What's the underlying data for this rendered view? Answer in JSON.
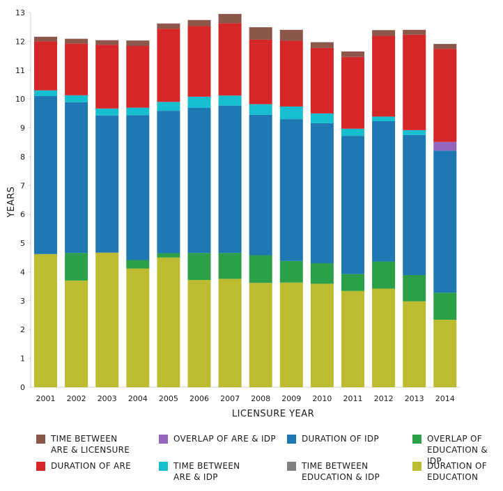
{
  "chart_data": {
    "type": "bar",
    "stacked": true,
    "xlabel": "LICENSURE YEAR",
    "ylabel": "YEARS",
    "ylim": [
      0,
      13
    ],
    "yticks": [
      "0",
      "1",
      "2",
      "3",
      "4",
      "5",
      "6",
      "7",
      "8",
      "9",
      "10",
      "11",
      "12",
      "13"
    ],
    "categories": [
      "2001",
      "2002",
      "2003",
      "2004",
      "2005",
      "2006",
      "2007",
      "2008",
      "2009",
      "2010",
      "2011",
      "2012",
      "2013",
      "2014"
    ],
    "series": [
      {
        "name": "DURATION OF\nEDUCATION",
        "color": "#bdbc30",
        "values": [
          4.62,
          3.7,
          4.67,
          4.12,
          4.5,
          3.72,
          3.76,
          3.62,
          3.63,
          3.59,
          3.34,
          3.42,
          2.98,
          2.34
        ]
      },
      {
        "name": "OVERLAP OF\nEDUCATION & IDP",
        "color": "#2ca048",
        "values": [
          0.0,
          0.96,
          0.0,
          0.29,
          0.15,
          0.94,
          0.9,
          0.96,
          0.75,
          0.71,
          0.59,
          0.94,
          0.91,
          0.94
        ]
      },
      {
        "name": "TIME BETWEEN\nEDUCATION & IDP",
        "color": "#7f7f7f",
        "values": [
          0,
          0,
          0,
          0,
          0,
          0,
          0,
          0,
          0,
          0,
          0,
          0,
          0,
          0
        ]
      },
      {
        "name": "DURATION OF IDP",
        "color": "#1f77b4",
        "values": [
          5.48,
          5.23,
          4.76,
          5.03,
          4.94,
          5.03,
          5.11,
          4.87,
          4.92,
          4.86,
          4.79,
          4.87,
          4.86,
          4.93
        ]
      },
      {
        "name": "TIME BETWEEN\nARE  & IDP",
        "color": "#17becf",
        "values": [
          0.2,
          0.24,
          0.24,
          0.26,
          0.31,
          0.39,
          0.35,
          0.37,
          0.44,
          0.34,
          0.25,
          0.16,
          0.17,
          0.0
        ]
      },
      {
        "name": "OVERLAP OF ARE & IDP",
        "color": "#9467bd",
        "values": [
          0,
          0,
          0,
          0,
          0,
          0,
          0,
          0,
          0,
          0,
          0,
          0,
          0,
          0.3
        ]
      },
      {
        "name": "DURATION OF ARE",
        "color": "#d62728",
        "values": [
          1.7,
          1.79,
          2.21,
          2.14,
          2.54,
          2.45,
          2.51,
          2.24,
          2.28,
          2.27,
          2.49,
          2.8,
          3.31,
          3.23
        ]
      },
      {
        "name": "TIME BETWEEN\nARE & LICENSURE",
        "color": "#8c564b",
        "values": [
          0.16,
          0.17,
          0.16,
          0.19,
          0.18,
          0.21,
          0.32,
          0.43,
          0.38,
          0.2,
          0.19,
          0.2,
          0.17,
          0.17
        ]
      }
    ],
    "legend": {
      "placement": "bottom",
      "order": [
        "TIME BETWEEN\nARE & LICENSURE",
        "OVERLAP OF ARE & IDP",
        "DURATION OF IDP",
        "OVERLAP OF\nEDUCATION & IDP",
        "DURATION OF ARE",
        "TIME BETWEEN\nARE  & IDP",
        "TIME BETWEEN\nEDUCATION & IDP",
        "DURATION OF\nEDUCATION"
      ]
    },
    "grid": false
  }
}
